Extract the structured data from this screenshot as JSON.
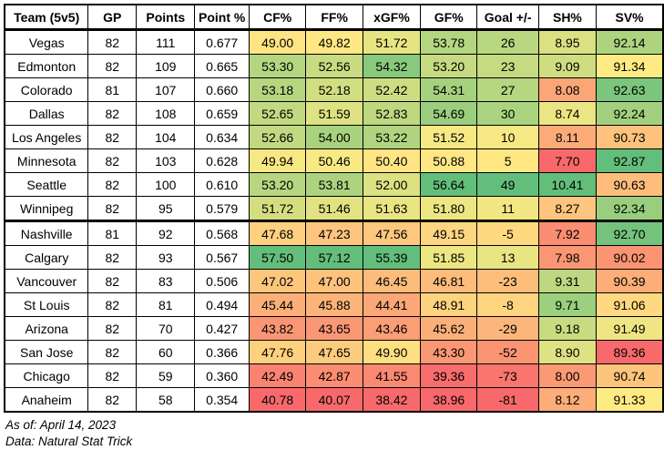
{
  "chart_data": {
    "type": "table",
    "columns": [
      "Team (5v5)",
      "GP",
      "Points",
      "Point %",
      "CF%",
      "FF%",
      "xGF%",
      "GF%",
      "Goal +/-",
      "SH%",
      "SV%"
    ],
    "column_keys": [
      "team",
      "gp",
      "points",
      "point-pct",
      "cf-pct",
      "ff-pct",
      "xgf-pct",
      "gf-pct",
      "goal-diff",
      "sh-pct",
      "sv-pct"
    ],
    "heat_columns": [
      4,
      5,
      6,
      7,
      8,
      9,
      10
    ],
    "heat_scale": {
      "low": "#F8696B",
      "mid": "#FFEB84",
      "high": "#63BE7B"
    },
    "playoff_cutoff_after_row_index": 7,
    "rows": [
      [
        "Vegas",
        "82",
        "111",
        "0.677",
        "49.00",
        "49.82",
        "51.72",
        "53.78",
        "26",
        "8.95",
        "92.14"
      ],
      [
        "Edmonton",
        "82",
        "109",
        "0.665",
        "53.30",
        "52.56",
        "54.32",
        "53.20",
        "23",
        "9.09",
        "91.34"
      ],
      [
        "Colorado",
        "81",
        "107",
        "0.660",
        "53.18",
        "52.18",
        "52.42",
        "54.31",
        "27",
        "8.08",
        "92.63"
      ],
      [
        "Dallas",
        "82",
        "108",
        "0.659",
        "52.65",
        "51.59",
        "52.83",
        "54.69",
        "30",
        "8.74",
        "92.24"
      ],
      [
        "Los Angeles",
        "82",
        "104",
        "0.634",
        "52.66",
        "54.00",
        "53.22",
        "51.52",
        "10",
        "8.11",
        "90.73"
      ],
      [
        "Minnesota",
        "82",
        "103",
        "0.628",
        "49.94",
        "50.46",
        "50.40",
        "50.88",
        "5",
        "7.70",
        "92.87"
      ],
      [
        "Seattle",
        "82",
        "100",
        "0.610",
        "53.20",
        "53.81",
        "52.00",
        "56.64",
        "49",
        "10.41",
        "90.63"
      ],
      [
        "Winnipeg",
        "82",
        "95",
        "0.579",
        "51.72",
        "51.46",
        "51.63",
        "51.80",
        "11",
        "8.27",
        "92.34"
      ],
      [
        "Nashville",
        "81",
        "92",
        "0.568",
        "47.68",
        "47.23",
        "47.56",
        "49.15",
        "-5",
        "7.92",
        "92.70"
      ],
      [
        "Calgary",
        "82",
        "93",
        "0.567",
        "57.50",
        "57.12",
        "55.39",
        "51.85",
        "13",
        "7.98",
        "90.02"
      ],
      [
        "Vancouver",
        "82",
        "83",
        "0.506",
        "47.02",
        "47.00",
        "46.45",
        "46.81",
        "-23",
        "9.31",
        "90.39"
      ],
      [
        "St Louis",
        "82",
        "81",
        "0.494",
        "45.44",
        "45.88",
        "44.41",
        "48.91",
        "-8",
        "9.71",
        "91.06"
      ],
      [
        "Arizona",
        "82",
        "70",
        "0.427",
        "43.82",
        "43.65",
        "43.46",
        "45.62",
        "-29",
        "9.18",
        "91.49"
      ],
      [
        "San Jose",
        "82",
        "60",
        "0.366",
        "47.76",
        "47.65",
        "49.90",
        "43.30",
        "-52",
        "8.90",
        "89.36"
      ],
      [
        "Chicago",
        "82",
        "59",
        "0.360",
        "42.49",
        "42.87",
        "41.55",
        "39.36",
        "-73",
        "8.00",
        "90.74"
      ],
      [
        "Anaheim",
        "82",
        "58",
        "0.354",
        "40.78",
        "40.07",
        "38.42",
        "38.96",
        "-81",
        "8.12",
        "91.33"
      ]
    ]
  },
  "footer": {
    "as_of": "As of: April 14, 2023",
    "source": "Data: Natural Stat Trick"
  }
}
